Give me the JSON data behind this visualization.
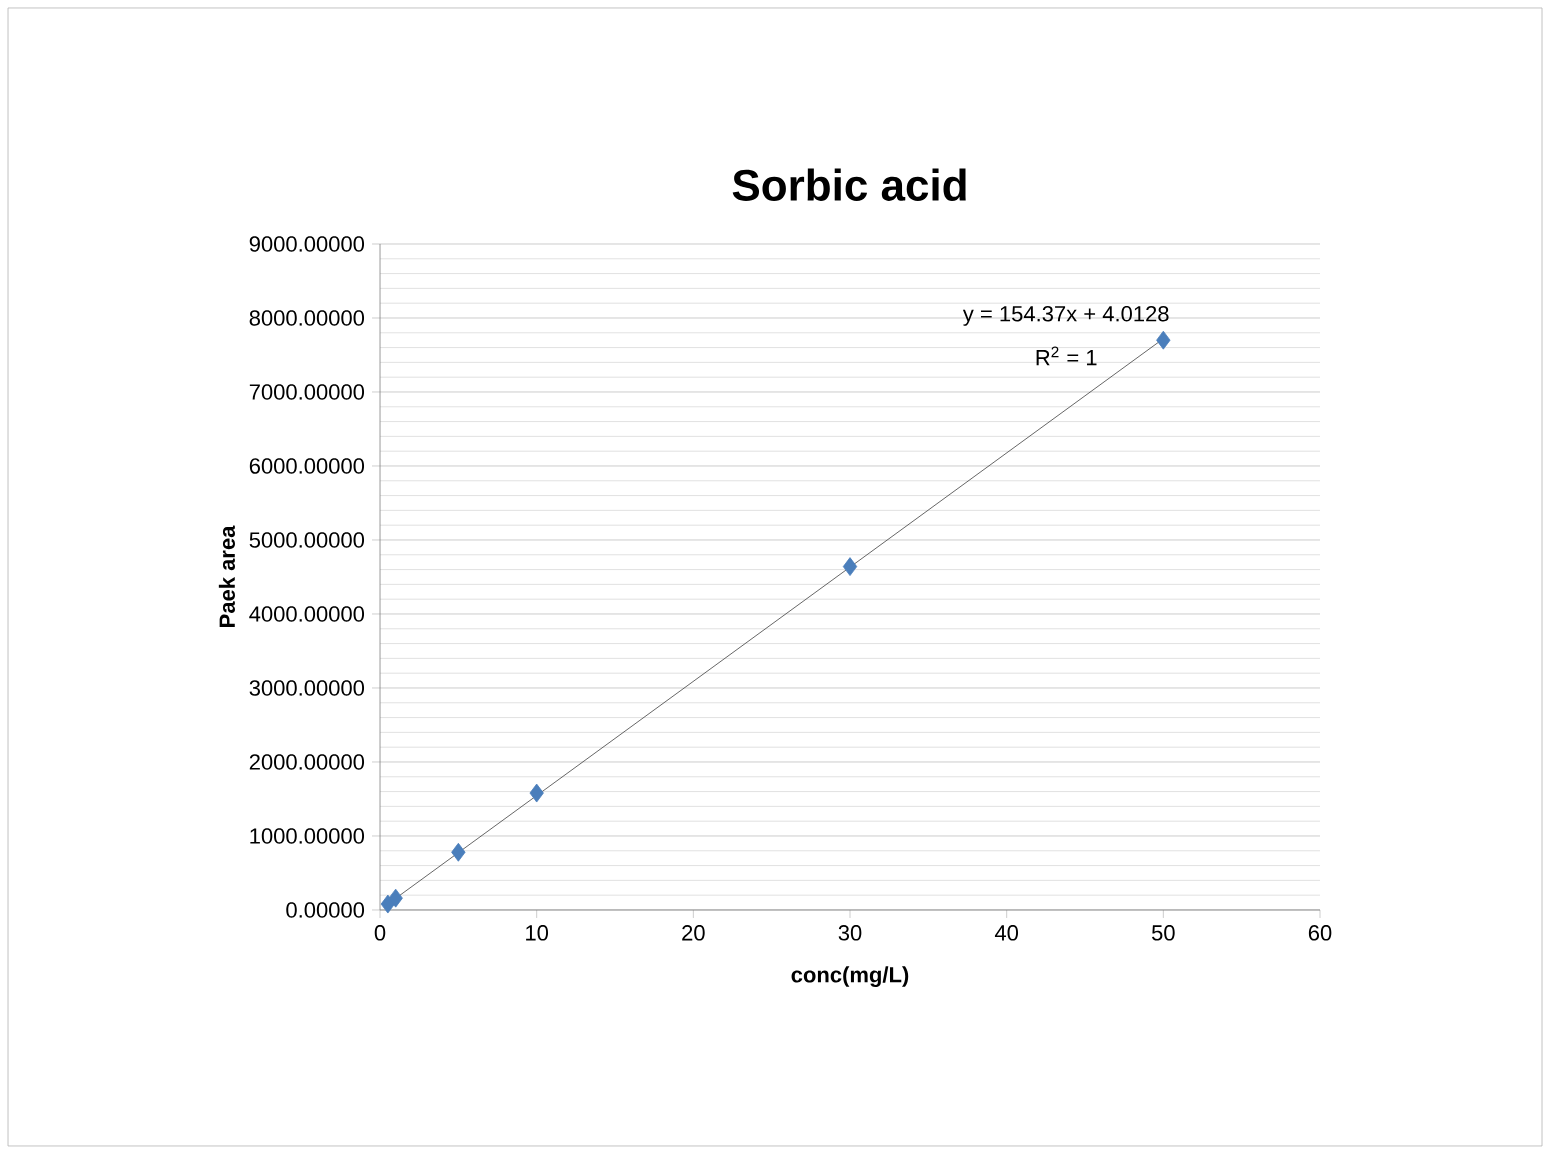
{
  "chart_data": {
    "type": "scatter",
    "title": "Sorbic acid",
    "xlabel": "conc(mg/L)",
    "ylabel": "Paek area",
    "series": [
      {
        "color": "#4a7ebb",
        "marker": "diamond",
        "x": [
          0.5,
          1,
          5,
          10,
          30,
          50
        ],
        "values": [
          80,
          160,
          780,
          1580,
          4640,
          7700
        ]
      },
      {
        "type": "line",
        "color": "#404040",
        "x": [
          0.5,
          50
        ],
        "values": [
          80,
          7720
        ]
      }
    ],
    "xlim": [
      0,
      60
    ],
    "xticks": [
      0,
      10,
      20,
      30,
      40,
      50,
      60
    ],
    "ylim": [
      0,
      9000
    ],
    "yticks": [
      {
        "value": 0,
        "label": "0.00000"
      },
      {
        "value": 1000,
        "label": "1000.00000"
      },
      {
        "value": 2000,
        "label": "2000.00000"
      },
      {
        "value": 3000,
        "label": "3000.00000"
      },
      {
        "value": 4000,
        "label": "4000.00000"
      },
      {
        "value": 5000,
        "label": "5000.00000"
      },
      {
        "value": 6000,
        "label": "6000.00000"
      },
      {
        "value": 7000,
        "label": "7000.00000"
      },
      {
        "value": 8000,
        "label": "8000.00000"
      },
      {
        "value": 9000,
        "label": "9000.00000"
      }
    ],
    "annotations": [
      "y = 154.37x + 4.0128",
      "R$^{2}$ = 1"
    ],
    "grid": "y"
  }
}
